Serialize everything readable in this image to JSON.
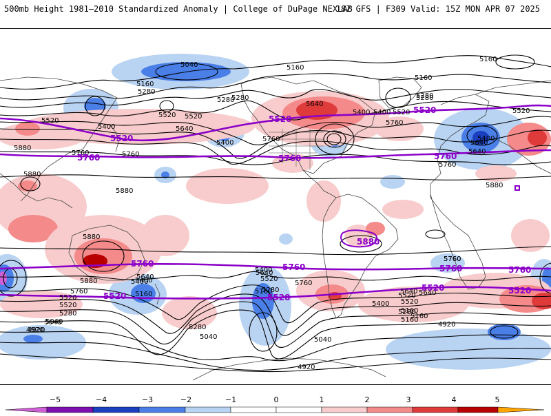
{
  "header": {
    "title_left": "500mb Height 1981–2010 Standardized Anomaly | College of DuPage NEXLAB",
    "title_right": "18Z GFS | F309 Valid: 15Z MON APR 07 2025"
  },
  "colors": {
    "neg5": "#d060d8",
    "neg4": "#7e10b0",
    "neg3": "#1a3fbf",
    "neg2": "#4a7fe8",
    "neg1": "#b9d3f3",
    "zero": "#ffffff",
    "pos1": "#f8cccc",
    "pos2": "#f48a8a",
    "pos3": "#e03b3b",
    "pos4": "#b80000",
    "pos5": "#ffa500",
    "highlight_contour": "#8b00c9"
  },
  "colorbar": {
    "ticks": [
      "−5",
      "−4",
      "−3",
      "−2",
      "−1",
      "0",
      "1",
      "2",
      "3",
      "4",
      "5"
    ]
  },
  "contour_labels": [
    "5040",
    "5160",
    "5160",
    "5160",
    "5280",
    "5280",
    "5280",
    "5160",
    "5400",
    "5520",
    "5640",
    "5520",
    "5400",
    "5280",
    "5640",
    "5400",
    "5760",
    "5520",
    "5640",
    "5400",
    "5520",
    "5520",
    "5760",
    "5280",
    "5400",
    "5640",
    "5760",
    "5880",
    "5760",
    "5880",
    "5880",
    "5880",
    "5880",
    "5760",
    "5880",
    "5760",
    "5400",
    "5160",
    "5520",
    "5280",
    "5040",
    "4920",
    "5160",
    "5400",
    "5520",
    "5640",
    "5760",
    "5160",
    "5520",
    "5640",
    "5280",
    "5040",
    "5040",
    "5280",
    "5400",
    "5520",
    "5640",
    "5160",
    "4920",
    "5760",
    "5640",
    "5520",
    "5400",
    "5280",
    "5160",
    "5040",
    "4920",
    "4920",
    "5760"
  ],
  "highlight_labels": [
    "5520",
    "5760",
    "5520",
    "5760",
    "5520",
    "5760",
    "5520",
    "5760",
    "5880",
    "5760",
    "5520",
    "5760",
    "5520",
    "5760",
    "5520"
  ]
}
